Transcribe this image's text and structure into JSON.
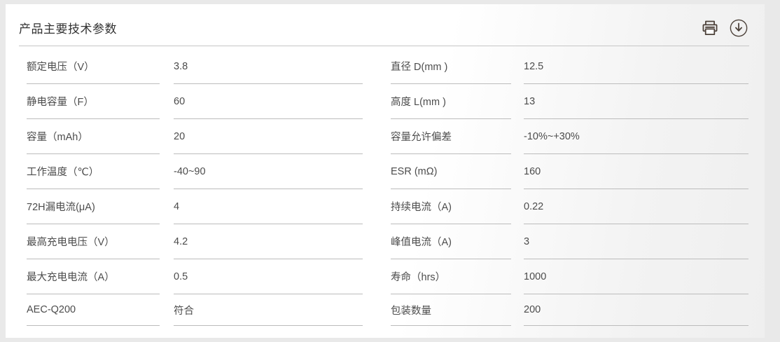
{
  "header": {
    "title": "产品主要技术参数",
    "actions": [
      {
        "name": "print",
        "icon": "printer-icon"
      },
      {
        "name": "download",
        "icon": "download-icon"
      }
    ]
  },
  "colors": {
    "title_text": "#333333",
    "body_text": "#4c4c4c",
    "cell_line": "#bcbcbc",
    "header_line": "#c6c6c6",
    "icon": "#4b4038",
    "card_bg": "#ffffff",
    "page_bg": "#e9e9e9"
  },
  "table": {
    "rows": [
      {
        "l1": "额定电压（V）",
        "v1": "3.8",
        "l2": "直径 D(mm )",
        "v2": "12.5"
      },
      {
        "l1": "静电容量（F）",
        "v1": "60",
        "l2": "高度 L(mm )",
        "v2": "13"
      },
      {
        "l1": "容量（mAh）",
        "v1": "20",
        "l2": "容量允许偏差",
        "v2": "-10%~+30%"
      },
      {
        "l1": "工作温度（℃）",
        "v1": "-40~90",
        "l2": "ESR (mΩ)",
        "v2": "160"
      },
      {
        "l1": "72H漏电流(μA)",
        "v1": "4",
        "l2": "持续电流（A)",
        "v2": "0.22"
      },
      {
        "l1": "最高充电电压（V）",
        "v1": "4.2",
        "l2": "峰值电流（A)",
        "v2": "3"
      },
      {
        "l1": "最大充电电流（A）",
        "v1": "0.5",
        "l2": "寿命（hrs）",
        "v2": "1000"
      },
      {
        "l1": "AEC-Q200",
        "v1": "符合",
        "l2": "包装数量",
        "v2": "200"
      }
    ]
  }
}
